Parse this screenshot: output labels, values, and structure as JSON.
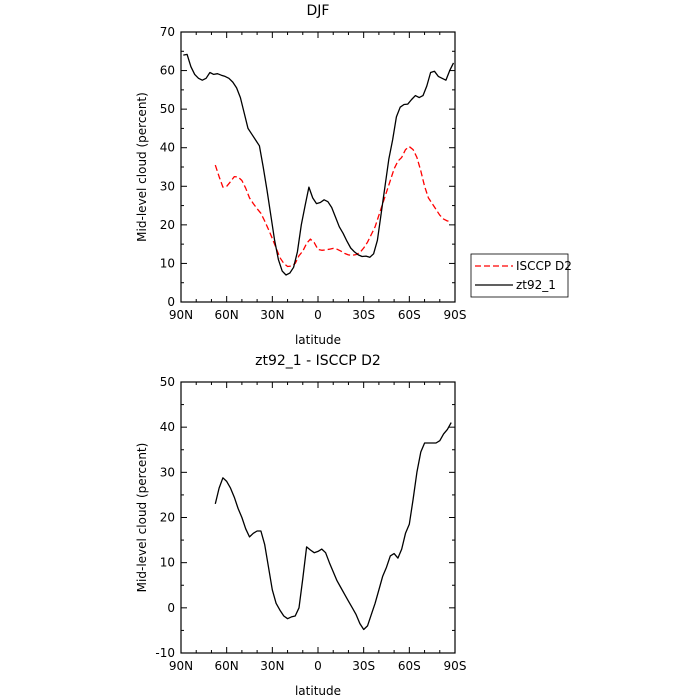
{
  "chart_data": [
    {
      "type": "line",
      "title": "DJF",
      "xlabel": "latitude",
      "ylabel": "Mid-level cloud (percent)",
      "xlim": [
        -90,
        90
      ],
      "ylim": [
        0,
        70
      ],
      "xticks": [
        -90,
        -60,
        -30,
        0,
        30,
        60,
        90
      ],
      "xticklabels": [
        "90N",
        "60N",
        "30N",
        "0",
        "30S",
        "60S",
        "90S"
      ],
      "yticks": [
        0,
        10,
        20,
        30,
        40,
        50,
        60,
        70
      ],
      "grid": false,
      "legend_position": "right",
      "series": [
        {
          "name": "ISCCP D2",
          "color": "#ff0000",
          "dash": "dashed",
          "x": [
            -67.5,
            -65,
            -62.5,
            -60,
            -57.5,
            -55,
            -52.5,
            -50,
            -47.5,
            -45,
            -42.5,
            -40,
            -37.5,
            -35,
            -32.5,
            -30,
            -27.5,
            -25,
            -22.5,
            -20,
            -17.5,
            -15,
            -12.5,
            -10,
            -7.5,
            -5,
            -2.5,
            0,
            2.5,
            5,
            7.5,
            10,
            12.5,
            15,
            17.5,
            20,
            22.5,
            25,
            27.5,
            30,
            32.5,
            35,
            37.5,
            40,
            42.5,
            45,
            47.5,
            50,
            52.5,
            55,
            57.5,
            60,
            62.5,
            65,
            67.5,
            70,
            72.5,
            75,
            77.5,
            80,
            82.5,
            85,
            87.5
          ],
          "y": [
            35.5,
            32.5,
            29.8,
            30.0,
            31.2,
            32.5,
            32.4,
            31.5,
            29.5,
            27.0,
            25.5,
            24.2,
            23.0,
            21.0,
            18.8,
            16.5,
            14.0,
            11.5,
            10.0,
            9.2,
            9.3,
            10.0,
            12.0,
            13.2,
            15.2,
            16.3,
            15.4,
            13.6,
            13.4,
            13.5,
            13.7,
            13.9,
            13.7,
            13.2,
            12.6,
            12.2,
            12.1,
            12.3,
            12.8,
            14.0,
            15.5,
            17.5,
            19.5,
            22.5,
            25.5,
            28.5,
            31.5,
            34.5,
            36.5,
            37.5,
            39.5,
            40.3,
            39.5,
            37.5,
            34.0,
            30.0,
            27.0,
            25.5,
            24.0,
            22.5,
            21.5,
            21.0,
            21.0
          ]
        },
        {
          "name": "zt92_1",
          "color": "#000000",
          "dash": "solid",
          "x": [
            -88.5,
            -86,
            -83.5,
            -81,
            -78.5,
            -76,
            -73.5,
            -71,
            -68.5,
            -66,
            -63.5,
            -61,
            -58.5,
            -56,
            -53.5,
            -51,
            -48.5,
            -46,
            -43.5,
            -41,
            -38.5,
            -36,
            -33.5,
            -31,
            -28.5,
            -26,
            -23.5,
            -21,
            -18.5,
            -16,
            -13.5,
            -11,
            -8.5,
            -6,
            -3.5,
            -1,
            1.5,
            4,
            6.5,
            9,
            11.5,
            14,
            16.5,
            19,
            21.5,
            24,
            26.5,
            29,
            31.5,
            34,
            36.5,
            39,
            41.5,
            44,
            46.5,
            49,
            51.5,
            54,
            56.5,
            59,
            61.5,
            64,
            66.5,
            69,
            71.5,
            74,
            76.5,
            79,
            81.5,
            84,
            86.5,
            89
          ],
          "y": [
            64.0,
            64.2,
            61.0,
            59.0,
            58.0,
            57.5,
            58.0,
            59.5,
            59.0,
            59.2,
            58.8,
            58.5,
            58.0,
            57.0,
            55.5,
            53.0,
            49.0,
            45.0,
            43.5,
            42.0,
            40.5,
            35.0,
            29.0,
            22.5,
            16.0,
            11.0,
            8.0,
            7.0,
            7.5,
            9.0,
            13.0,
            20.0,
            25.0,
            29.8,
            27.0,
            25.5,
            25.8,
            26.5,
            26.0,
            24.5,
            22.0,
            19.5,
            17.8,
            15.8,
            14.0,
            13.0,
            12.2,
            11.8,
            11.9,
            11.6,
            12.5,
            16.0,
            23.0,
            30.0,
            37.0,
            42.0,
            48.0,
            50.5,
            51.2,
            51.3,
            52.5,
            53.5,
            53.0,
            53.5,
            56.0,
            59.5,
            59.8,
            58.5,
            58.0,
            57.5,
            60.0,
            62.0
          ]
        }
      ]
    },
    {
      "type": "line",
      "title": "zt92_1 - ISCCP D2",
      "xlabel": "latitude",
      "ylabel": "Mid-level cloud (percent)",
      "xlim": [
        -90,
        90
      ],
      "ylim": [
        -10,
        50
      ],
      "xticks": [
        -90,
        -60,
        -30,
        0,
        30,
        60,
        90
      ],
      "xticklabels": [
        "90N",
        "60N",
        "30N",
        "0",
        "30S",
        "60S",
        "90S"
      ],
      "yticks": [
        -10,
        0,
        10,
        20,
        30,
        40,
        50
      ],
      "grid": false,
      "series": [
        {
          "color": "#000000",
          "dash": "solid",
          "x": [
            -67.5,
            -65,
            -62.5,
            -60,
            -57.5,
            -55,
            -52.5,
            -50,
            -47.5,
            -45,
            -42.5,
            -40,
            -37.5,
            -35,
            -32.5,
            -30,
            -27.5,
            -25,
            -22.5,
            -20,
            -17.5,
            -15,
            -12.5,
            -10,
            -7.5,
            -5,
            -2.5,
            0,
            2.5,
            5,
            7.5,
            10,
            12.5,
            15,
            17.5,
            20,
            22.5,
            25,
            27.5,
            30,
            32.5,
            35,
            37.5,
            40,
            42.5,
            45,
            47.5,
            50,
            52.5,
            55,
            57.5,
            60,
            62.5,
            65,
            67.5,
            70,
            72.5,
            75,
            77.5,
            80,
            82.5,
            85,
            87.5
          ],
          "y": [
            23.0,
            26.5,
            28.8,
            28.0,
            26.5,
            24.5,
            22.0,
            20.0,
            17.5,
            15.7,
            16.5,
            17.0,
            17.0,
            14.0,
            9.0,
            4.0,
            1.0,
            -0.5,
            -1.8,
            -2.4,
            -2.0,
            -1.8,
            0.0,
            6.5,
            13.5,
            12.8,
            12.2,
            12.5,
            13.0,
            12.2,
            10.0,
            8.0,
            6.0,
            4.5,
            3.0,
            1.5,
            0.0,
            -1.5,
            -3.5,
            -4.8,
            -4.0,
            -1.5,
            1.0,
            4.0,
            7.0,
            9.0,
            11.5,
            12.0,
            11.0,
            13.0,
            16.5,
            18.5,
            24.0,
            30.0,
            34.5,
            36.5,
            36.5,
            36.5,
            36.5,
            37.0,
            38.5,
            39.5,
            41.0
          ]
        }
      ]
    }
  ]
}
